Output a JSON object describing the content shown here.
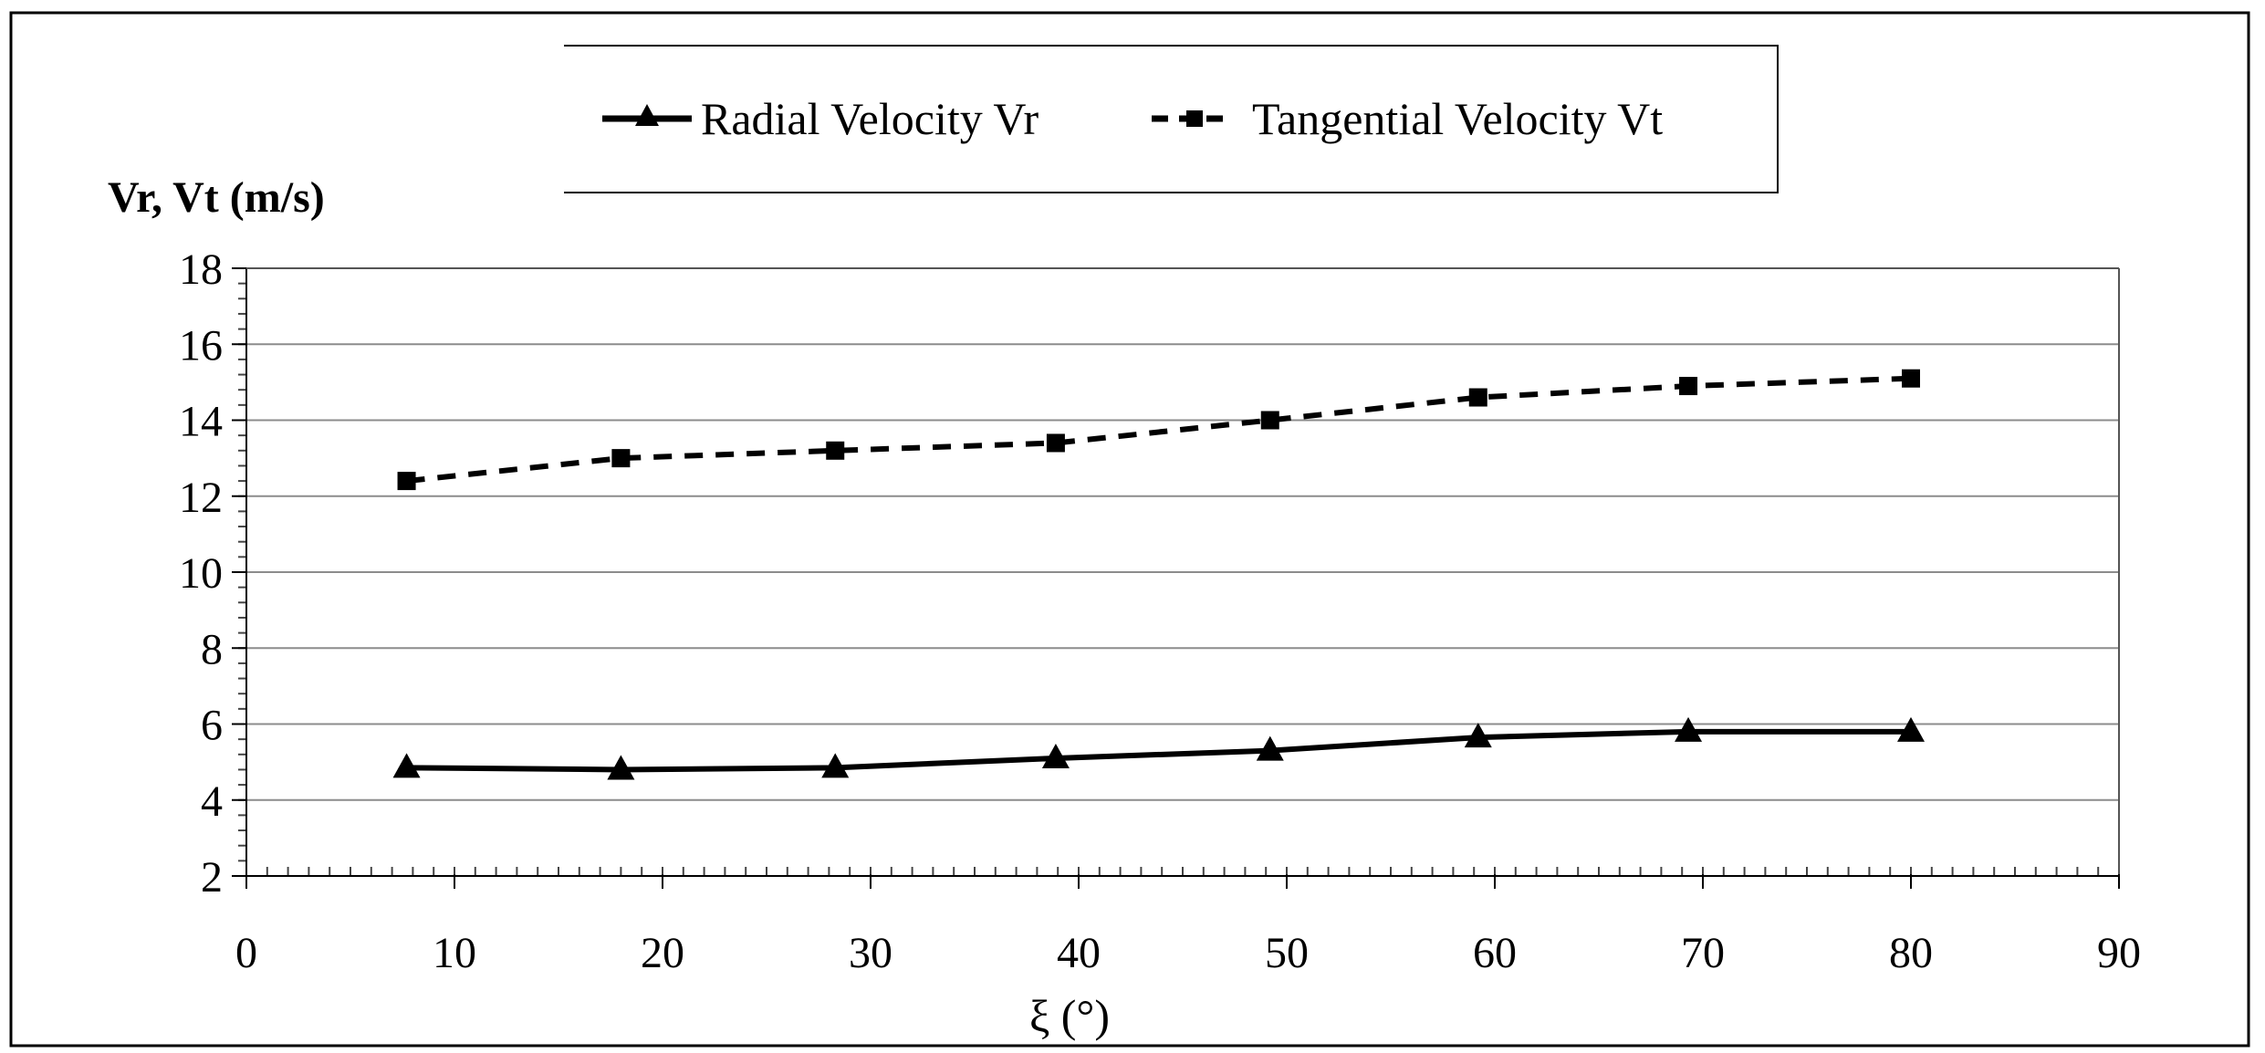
{
  "chart_data": {
    "type": "line",
    "title": "",
    "xlabel": "ξ (°)",
    "ylabel": "Vr, Vt (m/s)",
    "xlim": [
      0,
      90
    ],
    "ylim": [
      2,
      18
    ],
    "x_ticks": [
      0,
      10,
      20,
      30,
      40,
      50,
      60,
      70,
      80,
      90
    ],
    "y_ticks": [
      2,
      4,
      6,
      8,
      10,
      12,
      14,
      16,
      18
    ],
    "grid": "horizontal",
    "legend_position": "top",
    "series": [
      {
        "name": "Radial Velocity Vr",
        "line_style": "solid",
        "marker": "triangle",
        "x": [
          7.7,
          18,
          28.3,
          38.9,
          49.2,
          59.2,
          69.3,
          80
        ],
        "values": [
          4.85,
          4.8,
          4.85,
          5.1,
          5.3,
          5.65,
          5.8,
          5.8
        ]
      },
      {
        "name": "Tangential Velocity Vt",
        "line_style": "dashed",
        "marker": "square",
        "x": [
          7.7,
          18,
          28.3,
          38.9,
          49.2,
          59.2,
          69.3,
          80
        ],
        "values": [
          12.4,
          13.0,
          13.2,
          13.4,
          14.0,
          14.6,
          14.9,
          15.1
        ]
      }
    ]
  },
  "colors": {
    "ink": "#000000",
    "grid": "#8c8c8c",
    "background": "#ffffff"
  }
}
